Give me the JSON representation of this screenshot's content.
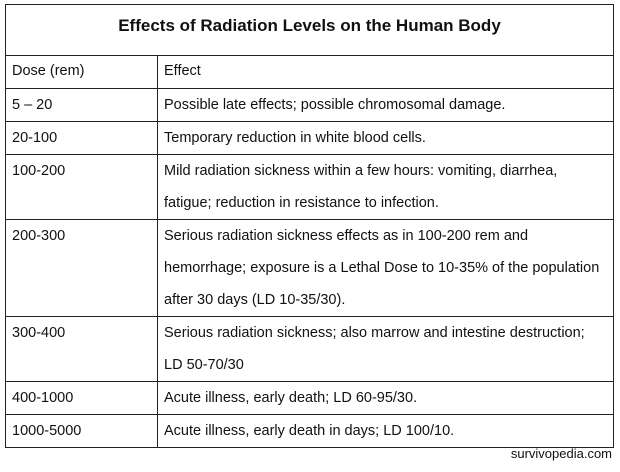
{
  "table": {
    "title": "Effects of Radiation Levels on the Human Body",
    "headers": {
      "dose": "Dose (rem)",
      "effect": "Effect"
    },
    "rows": [
      {
        "dose": "5 – 20",
        "effect": "Possible late effects; possible chromosomal damage."
      },
      {
        "dose": "20-100",
        "effect": "Temporary reduction in white blood cells."
      },
      {
        "dose": "100-200",
        "effect": "Mild radiation sickness within a few hours: vomiting, diarrhea, fatigue; reduction in resistance to infection."
      },
      {
        "dose": "200-300",
        "effect": "Serious radiation sickness effects as in 100-200 rem and hemorrhage; exposure is a Lethal Dose to 10-35% of the population after 30 days (LD 10-35/30)."
      },
      {
        "dose": "300-400",
        "effect": "Serious radiation sickness; also marrow and intestine destruction; LD 50-70/30"
      },
      {
        "dose": "400-1000",
        "effect": "Acute illness, early death; LD 60-95/30."
      },
      {
        "dose": "1000-5000",
        "effect": "Acute illness, early death in days; LD 100/10."
      }
    ]
  },
  "watermark": "survivopedia.com"
}
